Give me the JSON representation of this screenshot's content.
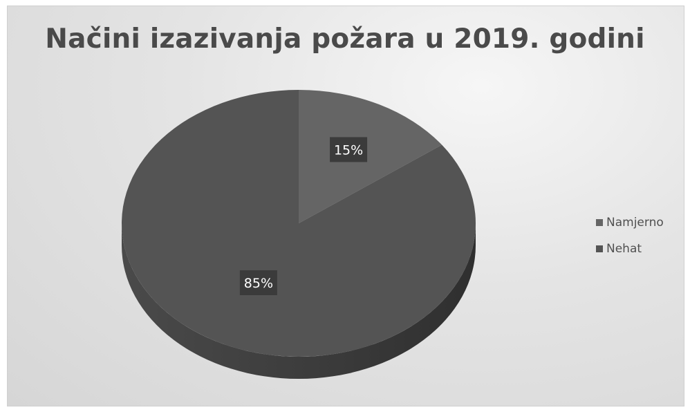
{
  "chart_data": {
    "type": "pie",
    "title": "Načini izazivanja požara u 2019. godini",
    "categories": [
      "Namjerno",
      "Nehat"
    ],
    "values": [
      15,
      85
    ],
    "data_labels": [
      "15%",
      "85%"
    ],
    "legend_position": "right",
    "colors": {
      "Namjerno": "#656565",
      "Nehat": "#545454",
      "label_box": "#3b3b3b",
      "background": "#e2e2e2"
    },
    "style": "3d"
  }
}
